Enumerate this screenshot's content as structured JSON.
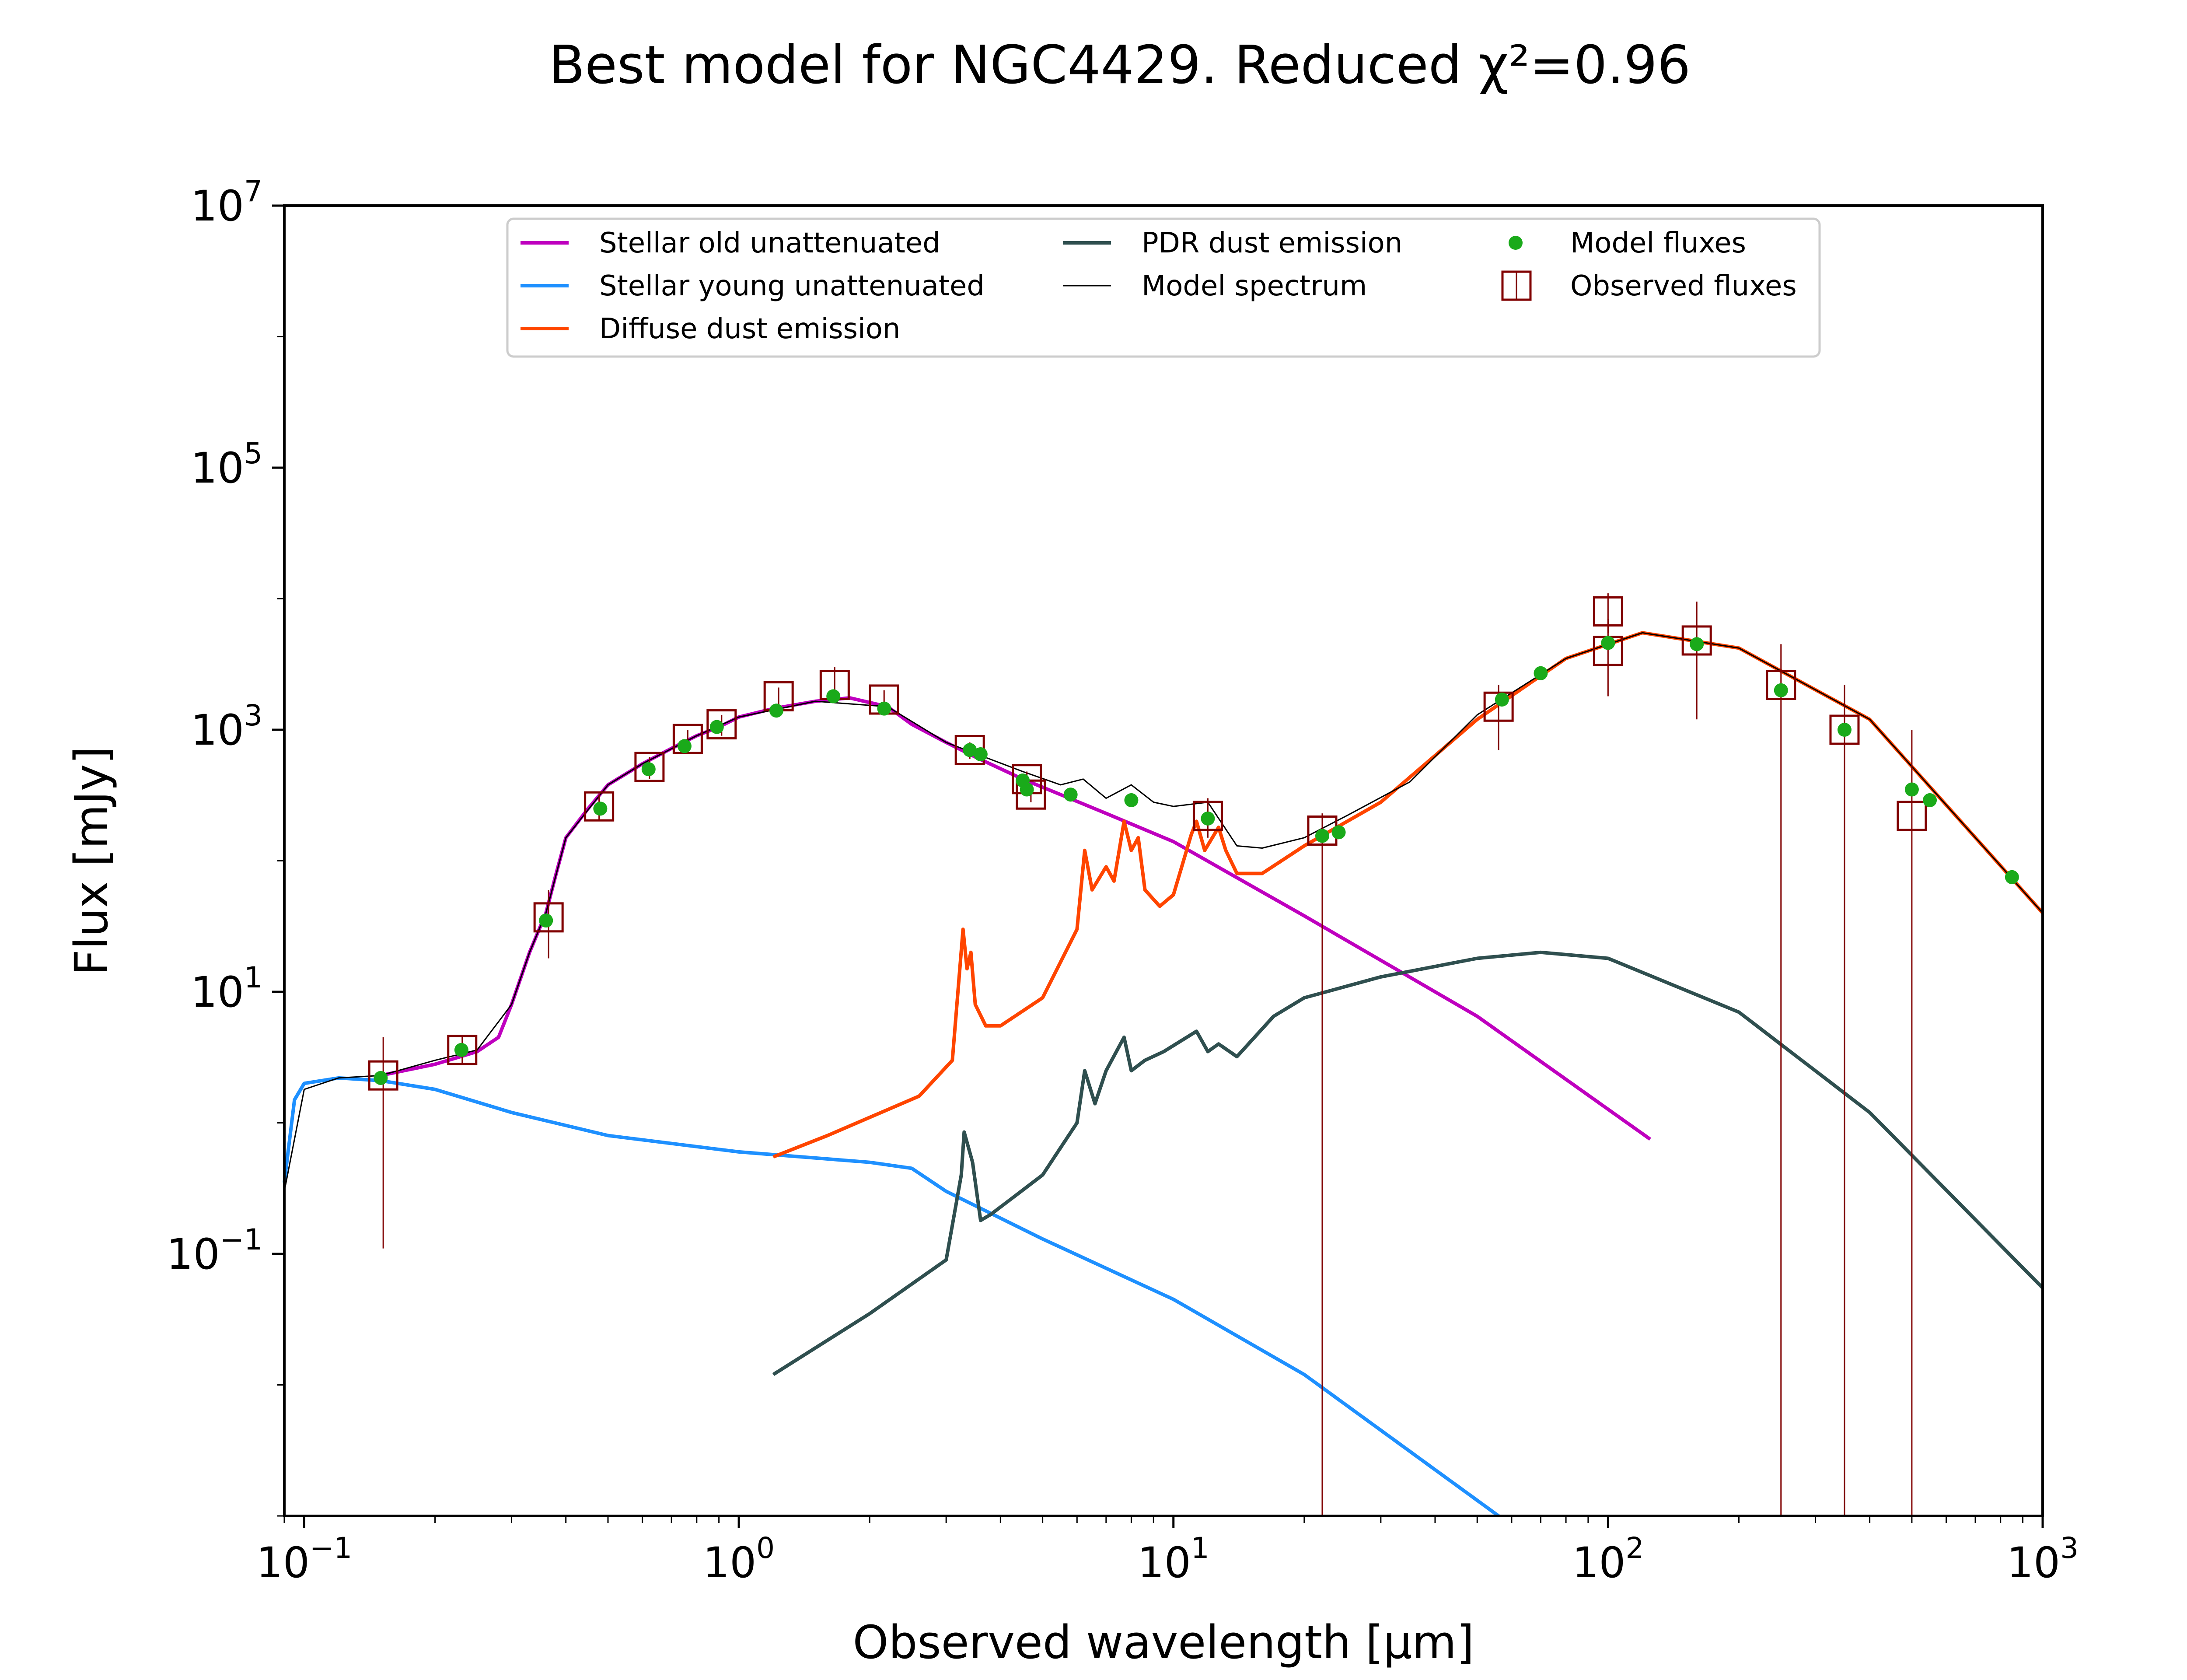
{
  "chart_data": {
    "type": "line",
    "title": "Best model for NGC4429. Reduced χ²=0.96",
    "xlabel": "Observed wavelength [μm]",
    "ylabel": "Flux [mJy]",
    "xscale": "log",
    "yscale": "log",
    "xlim": [
      0.09,
      1000
    ],
    "ylim": [
      0.001,
      10000000
    ],
    "x_ticks": [
      {
        "base": "10",
        "exp": "−1",
        "value": 0.1
      },
      {
        "base": "10",
        "exp": "0",
        "value": 1
      },
      {
        "base": "10",
        "exp": "1",
        "value": 10
      },
      {
        "base": "10",
        "exp": "2",
        "value": 100
      },
      {
        "base": "10",
        "exp": "3",
        "value": 1000
      }
    ],
    "y_ticks": [
      {
        "base": "10",
        "exp": "−1",
        "value": 0.1
      },
      {
        "base": "10",
        "exp": "1",
        "value": 10
      },
      {
        "base": "10",
        "exp": "3",
        "value": 1000
      },
      {
        "base": "10",
        "exp": "5",
        "value": 100000
      },
      {
        "base": "10",
        "exp": "7",
        "value": 10000000
      }
    ],
    "legend_position": "top",
    "grid": false,
    "series": [
      {
        "name": "Stellar old unattenuated",
        "kind": "line",
        "color": "#bf00bf",
        "x": [
          0.15,
          0.2,
          0.25,
          0.28,
          0.3,
          0.33,
          0.36,
          0.38,
          0.4,
          0.45,
          0.5,
          0.6,
          0.7,
          0.8,
          0.9,
          1.0,
          1.2,
          1.5,
          1.8,
          2.2,
          2.5,
          3.0,
          3.5,
          4.5,
          5.5,
          7,
          10,
          20,
          50,
          125
        ],
        "y": [
          2.3,
          2.8,
          3.5,
          4.5,
          8,
          20,
          40,
          80,
          150,
          250,
          380,
          550,
          720,
          900,
          1050,
          1250,
          1450,
          1650,
          1750,
          1500,
          1100,
          800,
          620,
          420,
          320,
          230,
          140,
          38,
          6.5,
          0.75
        ]
      },
      {
        "name": "Stellar young unattenuated",
        "kind": "line",
        "color": "#1e90ff",
        "x": [
          0.09,
          0.095,
          0.1,
          0.12,
          0.15,
          0.2,
          0.3,
          0.5,
          1.0,
          2.0,
          2.5,
          3.0,
          5.0,
          10,
          20,
          56
        ],
        "y": [
          0.35,
          1.5,
          2.0,
          2.2,
          2.1,
          1.8,
          1.2,
          0.8,
          0.6,
          0.5,
          0.45,
          0.3,
          0.13,
          0.045,
          0.012,
          0.001
        ]
      },
      {
        "name": "Diffuse dust emission",
        "kind": "line",
        "color": "#ff4500",
        "x": [
          1.2,
          1.6,
          2.0,
          2.6,
          3.1,
          3.28,
          3.35,
          3.42,
          3.5,
          3.7,
          4.0,
          5.0,
          6.0,
          6.25,
          6.5,
          7.0,
          7.3,
          7.7,
          8.0,
          8.3,
          8.6,
          9.3,
          10,
          11,
          11.3,
          11.8,
          12.7,
          13.2,
          14,
          16,
          20,
          30,
          50,
          80,
          120,
          200,
          400,
          1000
        ],
        "y": [
          0.55,
          0.8,
          1.1,
          1.6,
          3.0,
          30,
          15,
          20,
          8,
          5.5,
          5.5,
          9,
          30,
          120,
          60,
          90,
          70,
          200,
          120,
          150,
          60,
          45,
          55,
          160,
          200,
          120,
          180,
          120,
          80,
          80,
          130,
          280,
          1200,
          3500,
          5500,
          4200,
          1200,
          40
        ]
      },
      {
        "name": "PDR dust emission",
        "kind": "line",
        "color": "#2f4f4f",
        "x": [
          1.2,
          2.0,
          3.0,
          3.25,
          3.3,
          3.45,
          3.6,
          3.8,
          5.0,
          6.0,
          6.25,
          6.6,
          7.0,
          7.7,
          8.0,
          8.6,
          9.5,
          11.3,
          12.0,
          12.7,
          14,
          17,
          20,
          30,
          50,
          70,
          100,
          200,
          400,
          1000
        ],
        "y": [
          0.012,
          0.035,
          0.09,
          0.4,
          0.85,
          0.5,
          0.18,
          0.2,
          0.4,
          1.0,
          2.5,
          1.4,
          2.5,
          4.5,
          2.5,
          3.0,
          3.5,
          5.0,
          3.5,
          4.0,
          3.2,
          6.5,
          9,
          13,
          18,
          20,
          18,
          7,
          1.2,
          0.055
        ]
      },
      {
        "name": "Model spectrum",
        "kind": "line",
        "color": "#000000",
        "x": [
          0.09,
          0.1,
          0.12,
          0.15,
          0.2,
          0.25,
          0.3,
          0.33,
          0.36,
          0.4,
          0.5,
          0.6,
          0.8,
          1.0,
          1.5,
          2.2,
          3.0,
          4.5,
          5.5,
          6.2,
          7.0,
          8.0,
          9.0,
          10,
          12,
          14,
          16,
          20,
          25,
          35,
          50,
          80,
          120,
          200,
          400,
          1000
        ],
        "y": [
          0.3,
          1.8,
          2.2,
          2.3,
          3.0,
          3.6,
          8,
          20,
          40,
          150,
          380,
          550,
          900,
          1250,
          1650,
          1500,
          800,
          480,
          380,
          420,
          300,
          380,
          280,
          260,
          280,
          130,
          125,
          150,
          220,
          400,
          1300,
          3500,
          5500,
          4200,
          1200,
          40
        ]
      }
    ],
    "model_fluxes": {
      "name": "Model fluxes",
      "color": "#1aaa1a",
      "x": [
        0.15,
        0.23,
        0.36,
        0.48,
        0.62,
        0.75,
        0.89,
        1.22,
        1.65,
        2.16,
        3.4,
        3.6,
        4.5,
        4.6,
        5.8,
        8.0,
        12,
        22,
        24,
        57,
        70,
        100,
        160,
        250,
        350,
        500,
        550,
        850
      ],
      "y": [
        2.2,
        3.6,
        35,
        250,
        500,
        750,
        1050,
        1400,
        1800,
        1450,
        700,
        650,
        410,
        350,
        320,
        290,
        210,
        155,
        165,
        1700,
        2700,
        4600,
        4500,
        2000,
        1000,
        350,
        290,
        75
      ]
    },
    "observed_fluxes": {
      "name": "Observed fluxes",
      "color": "#800000",
      "points": [
        {
          "x": 0.152,
          "y": 2.3,
          "lo": 0.11,
          "hi": 4.5
        },
        {
          "x": 0.231,
          "y": 3.6,
          "lo": 2.8,
          "hi": 4.5
        },
        {
          "x": 0.365,
          "y": 37,
          "lo": 18,
          "hi": 60
        },
        {
          "x": 0.477,
          "y": 260,
          "lo": 200,
          "hi": 320
        },
        {
          "x": 0.623,
          "y": 520,
          "lo": 420,
          "hi": 620
        },
        {
          "x": 0.763,
          "y": 850,
          "lo": 700,
          "hi": 1000
        },
        {
          "x": 0.913,
          "y": 1100,
          "lo": 900,
          "hi": 1300
        },
        {
          "x": 1.235,
          "y": 1800,
          "lo": 1500,
          "hi": 2100
        },
        {
          "x": 1.662,
          "y": 2200,
          "lo": 1600,
          "hi": 3000
        },
        {
          "x": 2.159,
          "y": 1700,
          "lo": 1400,
          "hi": 2000
        },
        {
          "x": 3.4,
          "y": 700,
          "lo": 600,
          "hi": 800
        },
        {
          "x": 4.6,
          "y": 420,
          "lo": 360,
          "hi": 480
        },
        {
          "x": 4.7,
          "y": 320,
          "lo": 280,
          "hi": 360
        },
        {
          "x": 12.0,
          "y": 220,
          "lo": 150,
          "hi": 300
        },
        {
          "x": 22.0,
          "y": 170,
          "lo": 0.001,
          "hi": 230
        },
        {
          "x": 56.0,
          "y": 1500,
          "lo": 700,
          "hi": 2200
        },
        {
          "x": 100.0,
          "y": 8000,
          "lo": 5500,
          "hi": 11000
        },
        {
          "x": 100.0,
          "y": 4000,
          "lo": 1800,
          "hi": 7000
        },
        {
          "x": 160.0,
          "y": 4800,
          "lo": 1200,
          "hi": 9500
        },
        {
          "x": 250.0,
          "y": 2200,
          "lo": 0.001,
          "hi": 4500
        },
        {
          "x": 350.0,
          "y": 1000,
          "lo": 0.001,
          "hi": 2200
        },
        {
          "x": 500.0,
          "y": 220,
          "lo": 0.001,
          "hi": 1000
        }
      ]
    }
  }
}
